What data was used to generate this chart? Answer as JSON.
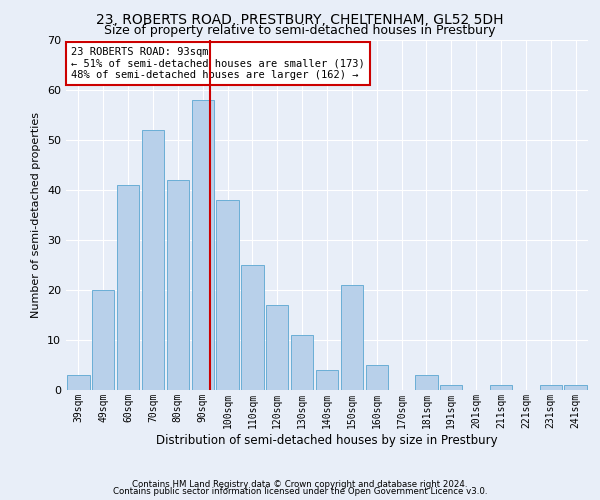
{
  "title": "23, ROBERTS ROAD, PRESTBURY, CHELTENHAM, GL52 5DH",
  "subtitle": "Size of property relative to semi-detached houses in Prestbury",
  "xlabel": "Distribution of semi-detached houses by size in Prestbury",
  "ylabel": "Number of semi-detached properties",
  "categories": [
    "39sqm",
    "49sqm",
    "60sqm",
    "70sqm",
    "80sqm",
    "90sqm",
    "100sqm",
    "110sqm",
    "120sqm",
    "130sqm",
    "140sqm",
    "150sqm",
    "160sqm",
    "170sqm",
    "181sqm",
    "191sqm",
    "201sqm",
    "211sqm",
    "221sqm",
    "231sqm",
    "241sqm"
  ],
  "values": [
    3,
    20,
    41,
    52,
    42,
    58,
    38,
    25,
    17,
    11,
    4,
    21,
    5,
    0,
    3,
    1,
    0,
    1,
    0,
    1,
    1
  ],
  "bar_color": "#b8d0ea",
  "bar_edgecolor": "#6aaed6",
  "highlight_index": 5,
  "highlight_color": "#c5d9ee",
  "highlight_edgecolor": "#6aaed6",
  "vline_color": "#cc0000",
  "annotation_text": "23 ROBERTS ROAD: 93sqm\n← 51% of semi-detached houses are smaller (173)\n48% of semi-detached houses are larger (162) →",
  "annotation_box_color": "#ffffff",
  "annotation_box_edgecolor": "#cc0000",
  "ylim": [
    0,
    70
  ],
  "yticks": [
    0,
    10,
    20,
    30,
    40,
    50,
    60,
    70
  ],
  "footer1": "Contains HM Land Registry data © Crown copyright and database right 2024.",
  "footer2": "Contains public sector information licensed under the Open Government Licence v3.0.",
  "background_color": "#e8eef8",
  "plot_background_color": "#e8eef8",
  "grid_color": "#ffffff",
  "title_fontsize": 10,
  "subtitle_fontsize": 9,
  "xlabel_fontsize": 8.5,
  "ylabel_fontsize": 8
}
